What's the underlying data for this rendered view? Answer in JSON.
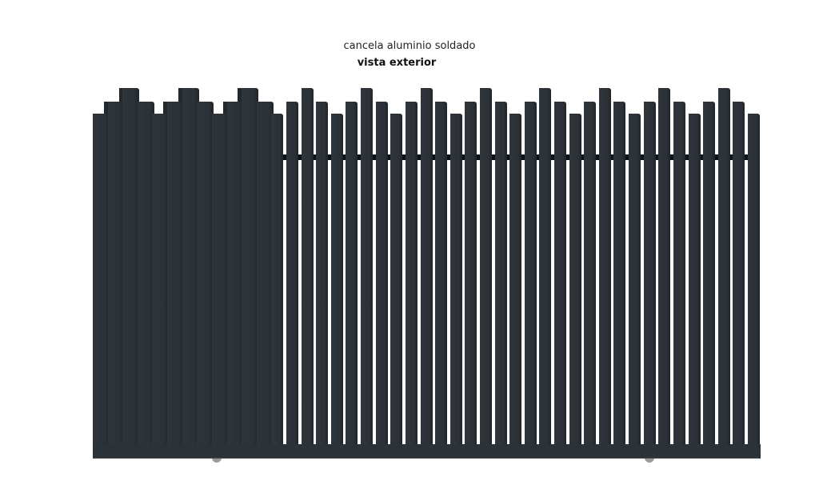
{
  "header": {
    "title": "cancela aluminio soldado",
    "subtitle": "vista exterior"
  },
  "product": {
    "bar_color": "#2c3237",
    "rail_color": "#101315"
  }
}
